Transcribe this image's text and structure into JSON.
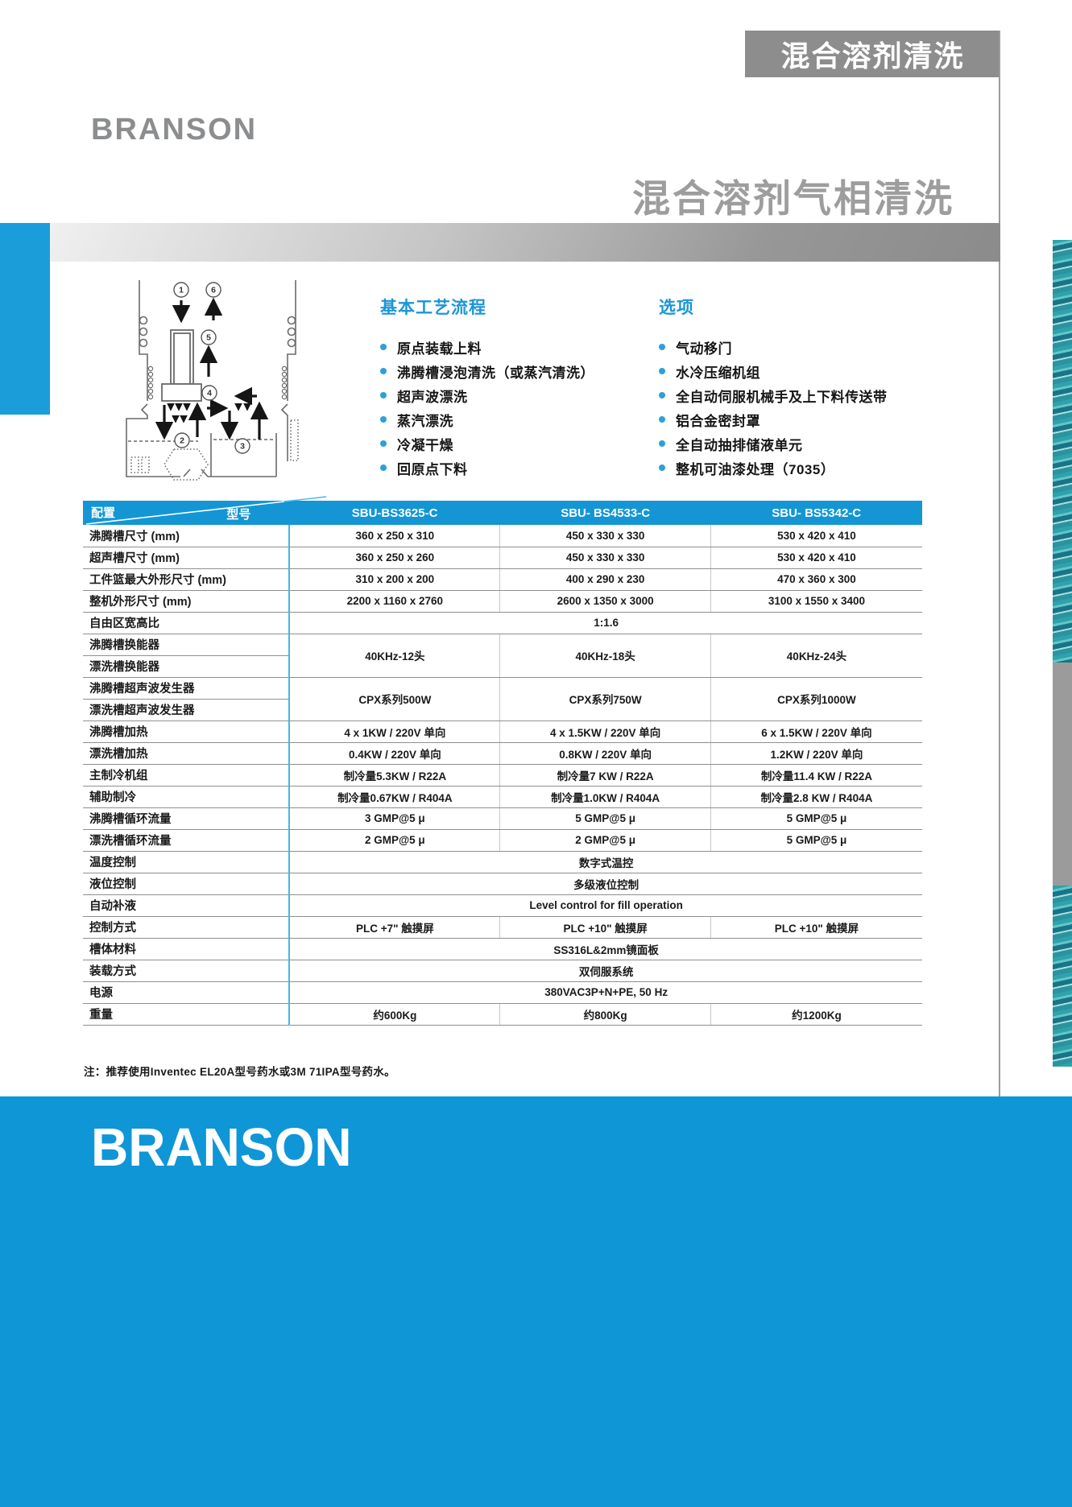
{
  "page": {
    "tag_banner": "混合溶剂清洗",
    "brand": "BRANSON",
    "title": "混合溶剂气相清洗"
  },
  "process": {
    "heading": "基本工艺流程",
    "items": [
      "原点装载上料",
      "沸腾槽浸泡清洗（或蒸汽清洗）",
      "超声波漂洗",
      "蒸汽漂洗",
      "冷凝干燥",
      "回原点下料"
    ]
  },
  "options": {
    "heading": "选项",
    "items": [
      "气动移门",
      "水冷压缩机组",
      "全自动伺服机械手及上下料传送带",
      "铝合金密封罩",
      "全自动抽排储液单元",
      "整机可油漆处理（7035）"
    ]
  },
  "diagram": {
    "steps": [
      "1",
      "2",
      "3",
      "4",
      "5",
      "6"
    ]
  },
  "table": {
    "corner": {
      "top_left": "配置",
      "bottom_right": "型号"
    },
    "models": [
      "SBU-BS3625-C",
      "SBU- BS4533-C",
      "SBU- BS5342-C"
    ],
    "rows": [
      {
        "label": "沸腾槽尺寸 (mm)",
        "values": [
          "360 x 250 x 310",
          "450 x 330 x 330",
          "530 x 420 x 410"
        ]
      },
      {
        "label": "超声槽尺寸 (mm)",
        "values": [
          "360 x 250 x 260",
          "450 x 330 x 330",
          "530 x 420 x 410"
        ]
      },
      {
        "label": "工件篮最大外形尺寸 (mm)",
        "values": [
          "310 x 200 x 200",
          "400 x 290 x 230",
          "470 x 360 x 300"
        ]
      },
      {
        "label": "整机外形尺寸 (mm)",
        "values": [
          "2200 x 1160 x 2760",
          "2600 x 1350 x 3000",
          "3100 x 1550 x 3400"
        ]
      },
      {
        "label": "自由区宽高比",
        "span": "1:1.6"
      },
      {
        "labels": [
          "沸腾槽换能器",
          "漂洗槽换能器"
        ],
        "values": [
          "40KHz-12头",
          "40KHz-18头",
          "40KHz-24头"
        ]
      },
      {
        "labels": [
          "沸腾槽超声波发生器",
          "漂洗槽超声波发生器"
        ],
        "values": [
          "CPX系列500W",
          "CPX系列750W",
          "CPX系列1000W"
        ]
      },
      {
        "label": "沸腾槽加热",
        "values": [
          "4 x 1KW / 220V 单向",
          "4 x 1.5KW / 220V 单向",
          "6 x 1.5KW / 220V 单向"
        ]
      },
      {
        "label": "漂洗槽加热",
        "values": [
          "0.4KW / 220V 单向",
          "0.8KW / 220V 单向",
          "1.2KW / 220V 单向"
        ]
      },
      {
        "label": "主制冷机组",
        "values": [
          "制冷量5.3KW / R22A",
          "制冷量7 KW / R22A",
          "制冷量11.4 KW / R22A"
        ]
      },
      {
        "label": "辅助制冷",
        "values": [
          "制冷量0.67KW / R404A",
          "制冷量1.0KW / R404A",
          "制冷量2.8 KW / R404A"
        ]
      },
      {
        "label": "沸腾槽循环流量",
        "values": [
          "3 GMP@5 μ",
          "5 GMP@5 μ",
          "5 GMP@5 μ"
        ]
      },
      {
        "label": "漂洗槽循环流量",
        "values": [
          "2 GMP@5 μ",
          "2 GMP@5 μ",
          "5 GMP@5 μ"
        ]
      },
      {
        "label": "温度控制",
        "span": "数字式温控"
      },
      {
        "label": "液位控制",
        "span": "多级液位控制"
      },
      {
        "label": "自动补液",
        "span": "Level control for fill operation"
      },
      {
        "label": "控制方式",
        "values": [
          "PLC +7\" 触摸屏",
          "PLC +10\" 触摸屏",
          "PLC +10\" 触摸屏"
        ]
      },
      {
        "label": "槽体材料",
        "span": "SS316L&2mm镜面板"
      },
      {
        "label": "装载方式",
        "span": "双伺服系统"
      },
      {
        "label": "电源",
        "span": "380VAC3P+N+PE, 50 Hz"
      },
      {
        "label": "重量",
        "values": [
          "约600Kg",
          "约800Kg",
          "约1200Kg"
        ]
      }
    ]
  },
  "note": "注：推荐使用Inventec EL20A型号药水或3M 71IPA型号药水。",
  "footer": {
    "brand": "BRANSON"
  },
  "colors": {
    "accent_blue": "#1496d5",
    "banner_gray": "#8d8d8d",
    "title_gray": "#9d9d9d",
    "divider_gray": "#8f8f8f",
    "col_separator_cyan": "#45b6e8",
    "strip_teal": "#2fa2ab"
  }
}
